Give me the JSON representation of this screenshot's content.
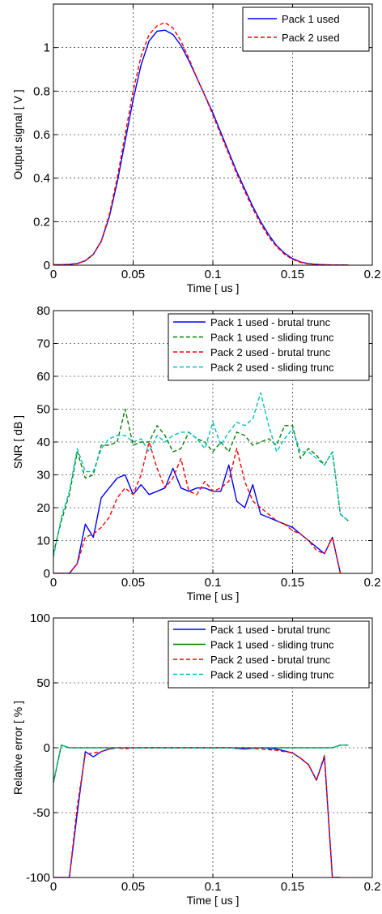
{
  "chart_data": [
    {
      "type": "line",
      "xlabel": "Time [ us ]",
      "ylabel": "Output signal [ V ]",
      "xlim": [
        0,
        0.2
      ],
      "ylim": [
        0,
        1.2
      ],
      "xticks": [
        0,
        0.05,
        0.1,
        0.15,
        0.2
      ],
      "xtick_labels": [
        "0",
        "0.05",
        "0.1",
        "0.15",
        "0.2"
      ],
      "yticks": [
        0,
        0.2,
        0.4,
        0.6,
        0.8,
        1.0
      ],
      "ytick_labels": [
        "0",
        "0.2",
        "0.4",
        "0.6",
        "0.8",
        "1"
      ],
      "grid": true,
      "legend_position": "top-right",
      "series": [
        {
          "name": "Pack 1 used",
          "color": "#0000ff",
          "style": "solid",
          "x": [
            0,
            0.005,
            0.01,
            0.015,
            0.02,
            0.025,
            0.03,
            0.035,
            0.04,
            0.045,
            0.05,
            0.055,
            0.06,
            0.065,
            0.07,
            0.075,
            0.08,
            0.085,
            0.09,
            0.095,
            0.1,
            0.105,
            0.11,
            0.115,
            0.12,
            0.125,
            0.13,
            0.135,
            0.14,
            0.145,
            0.15,
            0.155,
            0.16,
            0.165,
            0.17,
            0.175,
            0.18,
            0.185
          ],
          "y": [
            0.002,
            0.002,
            0.004,
            0.008,
            0.02,
            0.05,
            0.11,
            0.22,
            0.38,
            0.57,
            0.76,
            0.92,
            1.03,
            1.075,
            1.08,
            1.06,
            1.01,
            0.94,
            0.86,
            0.78,
            0.7,
            0.61,
            0.52,
            0.43,
            0.35,
            0.27,
            0.2,
            0.14,
            0.09,
            0.055,
            0.03,
            0.015,
            0.007,
            0.004,
            0.002,
            0.001,
            0.001,
            0.001
          ]
        },
        {
          "name": "Pack 2 used",
          "color": "#ff0000",
          "style": "dashed",
          "x": [
            0,
            0.005,
            0.01,
            0.015,
            0.02,
            0.025,
            0.03,
            0.035,
            0.04,
            0.045,
            0.05,
            0.055,
            0.06,
            0.065,
            0.07,
            0.075,
            0.08,
            0.085,
            0.09,
            0.095,
            0.1,
            0.105,
            0.11,
            0.115,
            0.12,
            0.125,
            0.13,
            0.135,
            0.14,
            0.145,
            0.15,
            0.155,
            0.16,
            0.165,
            0.17,
            0.175,
            0.18,
            0.185
          ],
          "y": [
            0.002,
            0.002,
            0.004,
            0.008,
            0.02,
            0.05,
            0.11,
            0.23,
            0.4,
            0.6,
            0.8,
            0.96,
            1.06,
            1.1,
            1.115,
            1.09,
            1.03,
            0.95,
            0.86,
            0.78,
            0.69,
            0.6,
            0.51,
            0.42,
            0.34,
            0.26,
            0.19,
            0.13,
            0.085,
            0.05,
            0.027,
            0.013,
            0.006,
            0.003,
            0.002,
            0.001,
            0.001,
            0.001
          ]
        }
      ]
    },
    {
      "type": "line",
      "xlabel": "Time [ us ]",
      "ylabel": "SNR [ dB ]",
      "xlim": [
        0,
        0.2
      ],
      "ylim": [
        0,
        80
      ],
      "xticks": [
        0,
        0.05,
        0.1,
        0.15,
        0.2
      ],
      "xtick_labels": [
        "0",
        "0.05",
        "0.1",
        "0.15",
        "0.2"
      ],
      "yticks": [
        0,
        10,
        20,
        30,
        40,
        50,
        60,
        70,
        80
      ],
      "ytick_labels": [
        "0",
        "10",
        "20",
        "30",
        "40",
        "50",
        "60",
        "70",
        "80"
      ],
      "grid": true,
      "legend_position": "top-right",
      "series": [
        {
          "name": "Pack 1 used - brutal trunc",
          "color": "#0000ff",
          "style": "solid",
          "x": [
            0,
            0.005,
            0.01,
            0.015,
            0.02,
            0.025,
            0.03,
            0.035,
            0.04,
            0.045,
            0.05,
            0.055,
            0.06,
            0.065,
            0.07,
            0.075,
            0.08,
            0.085,
            0.09,
            0.095,
            0.1,
            0.105,
            0.11,
            0.115,
            0.12,
            0.125,
            0.13,
            0.135,
            0.14,
            0.145,
            0.15,
            0.155,
            0.16,
            0.165,
            0.17,
            0.175,
            0.18
          ],
          "y": [
            0,
            0,
            0,
            3,
            15,
            11,
            23,
            26,
            29,
            30,
            24,
            27,
            24,
            25,
            26,
            32,
            26,
            25,
            26,
            26,
            25,
            25,
            33,
            22,
            20,
            27,
            18,
            17,
            16,
            15,
            14,
            12,
            10,
            8,
            6,
            11,
            0
          ]
        },
        {
          "name": "Pack 1 used - sliding trunc",
          "color": "#008000",
          "style": "dashed",
          "x": [
            0,
            0.005,
            0.01,
            0.015,
            0.02,
            0.025,
            0.03,
            0.035,
            0.04,
            0.045,
            0.05,
            0.055,
            0.06,
            0.065,
            0.07,
            0.075,
            0.08,
            0.085,
            0.09,
            0.095,
            0.1,
            0.105,
            0.11,
            0.115,
            0.12,
            0.125,
            0.13,
            0.135,
            0.14,
            0.145,
            0.15,
            0.155,
            0.16,
            0.165,
            0.17,
            0.175,
            0.18,
            0.185
          ],
          "y": [
            6,
            16,
            24,
            37,
            29,
            30,
            39,
            39,
            40,
            50,
            39,
            40,
            40,
            45,
            42,
            37,
            38,
            43,
            41,
            40,
            37,
            40,
            37,
            43,
            42,
            39,
            40,
            41,
            39,
            45,
            45,
            35,
            38,
            36,
            33,
            37,
            18,
            16
          ]
        },
        {
          "name": "Pack 2 used - brutal trunc",
          "color": "#ff0000",
          "style": "dashed",
          "x": [
            0,
            0.005,
            0.01,
            0.015,
            0.02,
            0.025,
            0.03,
            0.035,
            0.04,
            0.045,
            0.05,
            0.055,
            0.06,
            0.065,
            0.07,
            0.075,
            0.08,
            0.085,
            0.09,
            0.095,
            0.1,
            0.105,
            0.11,
            0.115,
            0.12,
            0.125,
            0.13,
            0.135,
            0.14,
            0.145,
            0.15,
            0.155,
            0.16,
            0.165,
            0.17,
            0.175,
            0.18
          ],
          "y": [
            0,
            0,
            0,
            3,
            11,
            12,
            14,
            17,
            23,
            26,
            24,
            30,
            40,
            32,
            26,
            29,
            35,
            25,
            24,
            28,
            25,
            26,
            28,
            38,
            28,
            22,
            20,
            18,
            16,
            15,
            13,
            12,
            10,
            7,
            6,
            11,
            0
          ]
        },
        {
          "name": "Pack 2 used - sliding trunc",
          "color": "#00bfbf",
          "style": "dashed",
          "x": [
            0,
            0.005,
            0.01,
            0.015,
            0.02,
            0.025,
            0.03,
            0.035,
            0.04,
            0.045,
            0.05,
            0.055,
            0.06,
            0.065,
            0.07,
            0.075,
            0.08,
            0.085,
            0.09,
            0.095,
            0.1,
            0.105,
            0.11,
            0.115,
            0.12,
            0.125,
            0.13,
            0.135,
            0.14,
            0.145,
            0.15,
            0.155,
            0.16,
            0.165,
            0.17,
            0.175,
            0.18,
            0.185
          ],
          "y": [
            5,
            17,
            25,
            38,
            31,
            31,
            38,
            41,
            42,
            42,
            40,
            41,
            37,
            42,
            40,
            42,
            43,
            43,
            41,
            38,
            46,
            39,
            43,
            46,
            45,
            47,
            55,
            45,
            37,
            41,
            44,
            37,
            37,
            35,
            33,
            37,
            18,
            16
          ]
        }
      ]
    },
    {
      "type": "line",
      "xlabel": "Time [ us ]",
      "ylabel": "Relative error [ % ]",
      "xlim": [
        0,
        0.2
      ],
      "ylim": [
        -100,
        100
      ],
      "xticks": [
        0,
        0.05,
        0.1,
        0.15,
        0.2
      ],
      "xtick_labels": [
        "0",
        "0.05",
        "0.1",
        "0.15",
        "0.2"
      ],
      "yticks": [
        -100,
        -50,
        0,
        50,
        100
      ],
      "ytick_labels": [
        "-100",
        "-50",
        "0",
        "50",
        "100"
      ],
      "grid": true,
      "legend_position": "top-right",
      "series": [
        {
          "name": "Pack 1 used - brutal trunc",
          "color": "#0000ff",
          "style": "solid",
          "x": [
            0,
            0.005,
            0.01,
            0.015,
            0.02,
            0.025,
            0.03,
            0.035,
            0.04,
            0.045,
            0.05,
            0.06,
            0.07,
            0.08,
            0.09,
            0.1,
            0.11,
            0.12,
            0.13,
            0.14,
            0.15,
            0.155,
            0.16,
            0.165,
            0.17,
            0.175,
            0.18
          ],
          "y": [
            -100,
            -100,
            -100,
            -50,
            -3,
            -7,
            -3,
            -1,
            0,
            0,
            0,
            0,
            0,
            0,
            0,
            0,
            0,
            -1,
            0,
            -1,
            -4,
            -8,
            -13,
            -25,
            -7,
            -100,
            -100
          ]
        },
        {
          "name": "Pack 1 used - sliding trunc",
          "color": "#008000",
          "style": "solid",
          "x": [
            0,
            0.005,
            0.01,
            0.015,
            0.02,
            0.05,
            0.1,
            0.15,
            0.17,
            0.175,
            0.18,
            0.185
          ],
          "y": [
            -27,
            2,
            0,
            0,
            0,
            0,
            0,
            0,
            0,
            0,
            2,
            2
          ]
        },
        {
          "name": "Pack 2 used - brutal trunc",
          "color": "#ff0000",
          "style": "dashed",
          "x": [
            0,
            0.005,
            0.01,
            0.015,
            0.02,
            0.025,
            0.03,
            0.035,
            0.04,
            0.045,
            0.05,
            0.06,
            0.07,
            0.08,
            0.09,
            0.1,
            0.11,
            0.12,
            0.13,
            0.14,
            0.15,
            0.155,
            0.16,
            0.165,
            0.17,
            0.175,
            0.18
          ],
          "y": [
            -100,
            -100,
            -100,
            -45,
            -5,
            -4,
            -3,
            -1,
            0,
            -1,
            0,
            0,
            0,
            0,
            0,
            0,
            0,
            0,
            -1,
            -2,
            -4,
            -8,
            -13,
            -25,
            -6,
            -100,
            -100
          ]
        },
        {
          "name": "Pack 2 used - sliding trunc",
          "color": "#00bfbf",
          "style": "dashed",
          "x": [
            0,
            0.005,
            0.01,
            0.015,
            0.02,
            0.05,
            0.1,
            0.15,
            0.17,
            0.175,
            0.18,
            0.185
          ],
          "y": [
            -26,
            2,
            0,
            0,
            0,
            0,
            0,
            0,
            0,
            0,
            2,
            2
          ]
        }
      ]
    }
  ]
}
